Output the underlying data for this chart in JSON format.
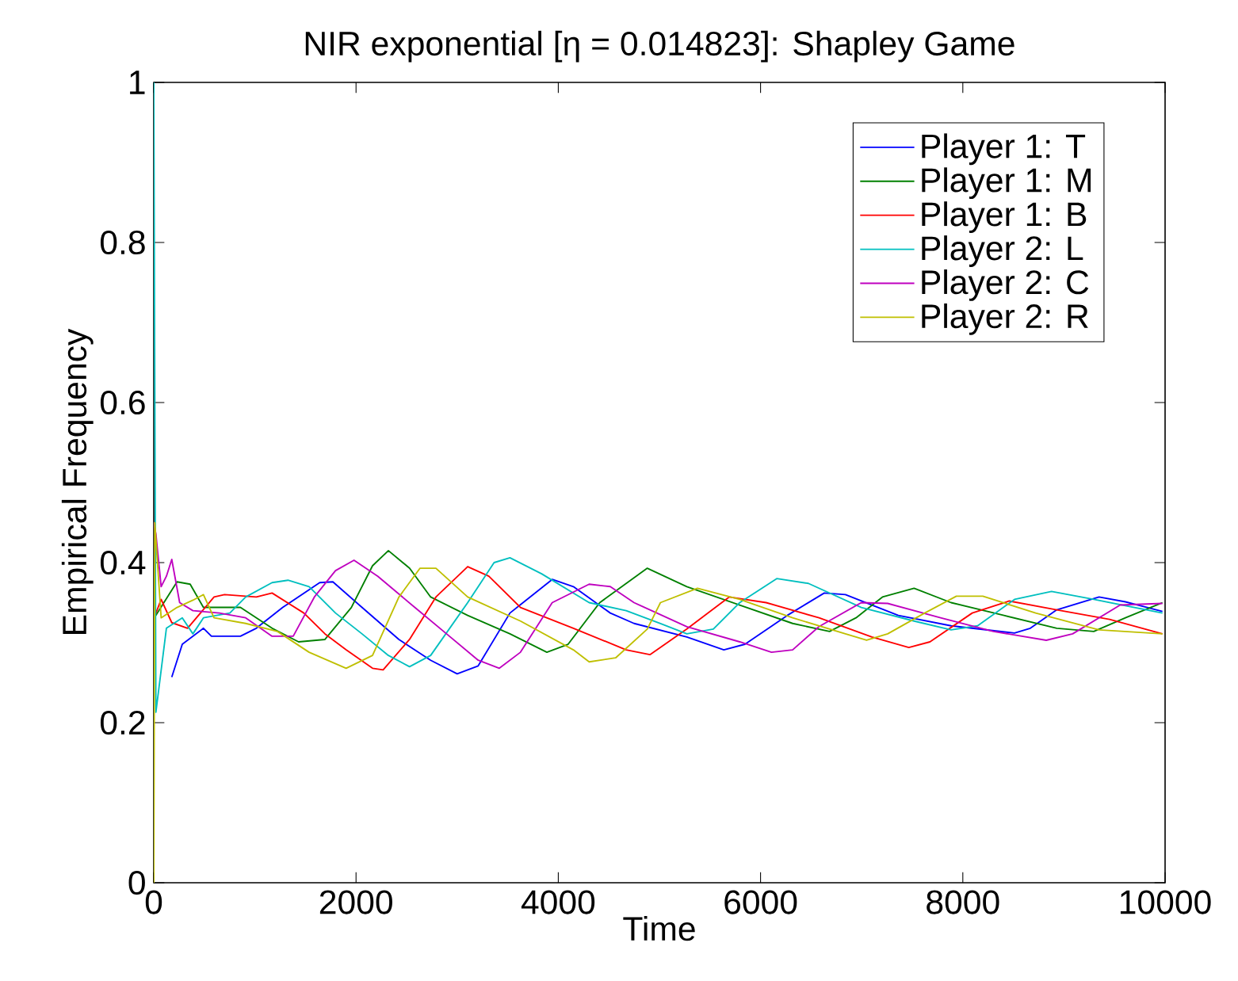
{
  "chart_data": {
    "type": "line",
    "title": "NIR exponential [η = 0.014823]:  Shapley Game",
    "xlabel": "Time",
    "ylabel": "Empirical Frequency",
    "xlim": [
      0,
      10000
    ],
    "ylim": [
      0,
      1
    ],
    "xticks": [
      0,
      2000,
      4000,
      6000,
      8000,
      10000
    ],
    "yticks": [
      0,
      0.2,
      0.4,
      0.6,
      0.8,
      1
    ],
    "legend": "top right",
    "series": [
      {
        "name": "Player 1: T",
        "color": "#0000ff",
        "x": [
          178,
          282,
          491,
          570,
          857,
          1014,
          1275,
          1641,
          1771,
          2059,
          2424,
          2738,
          3000,
          3208,
          3522,
          3940,
          4149,
          4514,
          4749,
          5271,
          5637,
          5846,
          6264,
          6630,
          6839,
          7362,
          7884,
          8511,
          8668,
          8929,
          9347,
          9608,
          9974
        ],
        "values": [
          0.257,
          0.298,
          0.318,
          0.308,
          0.308,
          0.318,
          0.344,
          0.375,
          0.376,
          0.344,
          0.304,
          0.278,
          0.261,
          0.271,
          0.337,
          0.379,
          0.37,
          0.337,
          0.324,
          0.307,
          0.291,
          0.298,
          0.334,
          0.362,
          0.36,
          0.334,
          0.321,
          0.312,
          0.318,
          0.341,
          0.357,
          0.351,
          0.339
        ]
      },
      {
        "name": "Player 1: M",
        "color": "#008000",
        "x": [
          0,
          230,
          360,
          491,
          857,
          1170,
          1432,
          1693,
          1954,
          2163,
          2320,
          2529,
          2738,
          3104,
          3522,
          3887,
          4097,
          4410,
          4880,
          5271,
          5794,
          6317,
          6682,
          6944,
          7205,
          7518,
          7884,
          8407,
          8929,
          9295,
          9608,
          9974
        ],
        "values": [
          0.33,
          0.376,
          0.373,
          0.344,
          0.344,
          0.318,
          0.301,
          0.304,
          0.344,
          0.396,
          0.415,
          0.393,
          0.357,
          0.334,
          0.311,
          0.288,
          0.298,
          0.35,
          0.393,
          0.37,
          0.347,
          0.324,
          0.314,
          0.331,
          0.357,
          0.368,
          0.35,
          0.334,
          0.318,
          0.314,
          0.331,
          0.35
        ]
      },
      {
        "name": "Player 1: B",
        "color": "#ff0000",
        "x": [
          0,
          73,
          178,
          334,
          596,
          700,
          1014,
          1170,
          1484,
          1693,
          1902,
          2163,
          2268,
          2529,
          2790,
          3104,
          3313,
          3626,
          4149,
          4671,
          4906,
          5271,
          5689,
          6055,
          6578,
          7101,
          7466,
          7675,
          8093,
          8459,
          8929,
          9451,
          9974
        ],
        "values": [
          0.33,
          0.354,
          0.325,
          0.318,
          0.357,
          0.36,
          0.357,
          0.362,
          0.337,
          0.311,
          0.291,
          0.268,
          0.266,
          0.304,
          0.357,
          0.395,
          0.383,
          0.344,
          0.318,
          0.291,
          0.285,
          0.317,
          0.357,
          0.35,
          0.331,
          0.307,
          0.294,
          0.301,
          0.337,
          0.352,
          0.341,
          0.329,
          0.311
        ]
      },
      {
        "name": "Player 2: L",
        "color": "#00bfbf",
        "x": [
          0,
          21,
          125,
          282,
          387,
          491,
          752,
          909,
          1170,
          1327,
          1536,
          1797,
          2059,
          2320,
          2529,
          2738,
          3104,
          3365,
          3522,
          3835,
          4305,
          4671,
          5010,
          5271,
          5533,
          5794,
          6160,
          6473,
          6996,
          7518,
          7884,
          8146,
          8511,
          8877,
          9295,
          9974
        ],
        "values": [
          1,
          0.213,
          0.318,
          0.331,
          0.311,
          0.331,
          0.337,
          0.357,
          0.375,
          0.378,
          0.37,
          0.337,
          0.311,
          0.284,
          0.27,
          0.284,
          0.35,
          0.4,
          0.406,
          0.386,
          0.35,
          0.34,
          0.324,
          0.311,
          0.317,
          0.35,
          0.38,
          0.374,
          0.344,
          0.327,
          0.316,
          0.321,
          0.354,
          0.364,
          0.354,
          0.337
        ]
      },
      {
        "name": "Player 2: C",
        "color": "#bf00bf",
        "x": [
          0,
          21,
          73,
          125,
          178,
          256,
          387,
          648,
          909,
          1170,
          1379,
          1588,
          1797,
          1980,
          2215,
          2581,
          2895,
          3208,
          3417,
          3626,
          3940,
          4305,
          4514,
          4749,
          5271,
          5794,
          6108,
          6317,
          6578,
          6996,
          7257,
          7780,
          8302,
          8825,
          9086,
          9556,
          9974
        ],
        "values": [
          0.45,
          0.436,
          0.37,
          0.383,
          0.404,
          0.35,
          0.34,
          0.337,
          0.331,
          0.308,
          0.308,
          0.357,
          0.39,
          0.403,
          0.383,
          0.344,
          0.311,
          0.278,
          0.268,
          0.288,
          0.35,
          0.373,
          0.37,
          0.35,
          0.32,
          0.301,
          0.288,
          0.291,
          0.32,
          0.35,
          0.349,
          0.331,
          0.314,
          0.303,
          0.311,
          0.347,
          0.349
        ]
      },
      {
        "name": "Player 2: R",
        "color": "#bfbf00",
        "x": [
          0,
          10,
          73,
          230,
          387,
          491,
          596,
          909,
          1223,
          1536,
          1902,
          2163,
          2424,
          2633,
          2790,
          3104,
          3626,
          4149,
          4305,
          4567,
          4880,
          5010,
          5376,
          5794,
          6317,
          6839,
          7048,
          7257,
          7623,
          7936,
          8198,
          8720,
          9347,
          9974
        ],
        "values": [
          0,
          0.45,
          0.331,
          0.344,
          0.353,
          0.36,
          0.331,
          0.324,
          0.314,
          0.288,
          0.268,
          0.284,
          0.357,
          0.393,
          0.393,
          0.357,
          0.327,
          0.291,
          0.276,
          0.281,
          0.317,
          0.35,
          0.368,
          0.354,
          0.331,
          0.311,
          0.303,
          0.311,
          0.337,
          0.358,
          0.358,
          0.337,
          0.316,
          0.311
        ]
      }
    ]
  }
}
